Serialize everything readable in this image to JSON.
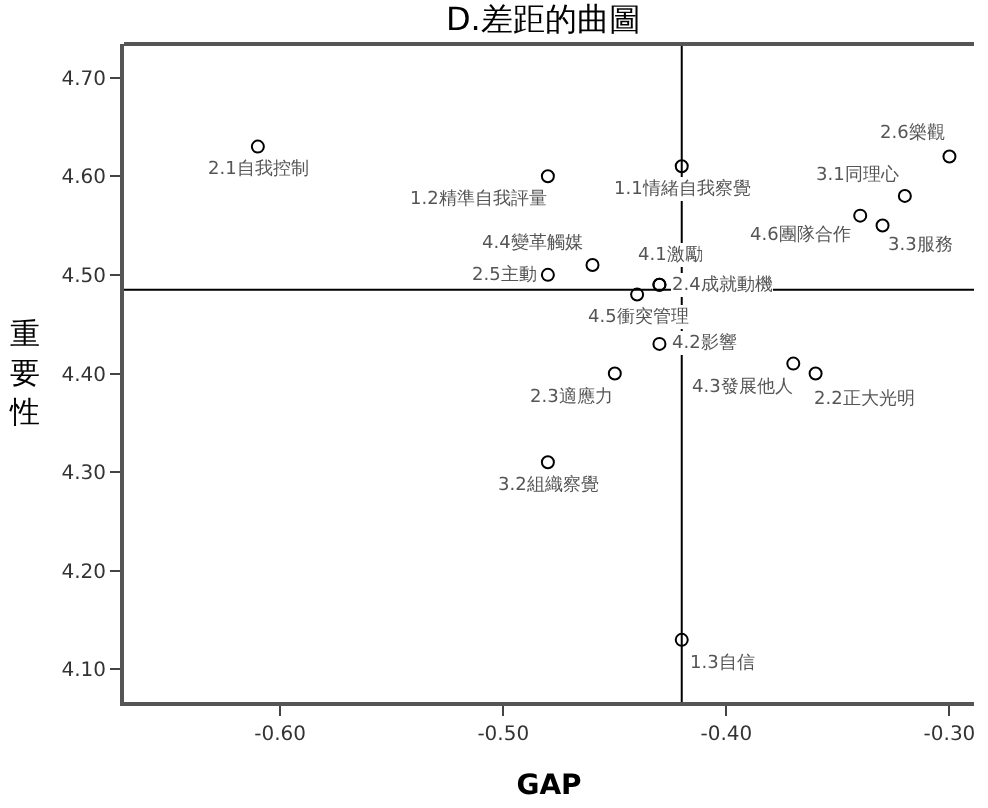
{
  "chart_data": {
    "type": "scatter",
    "title": "D.差距的曲圖",
    "xlabel": "GAP",
    "ylabel": "重要性",
    "x": [
      -0.61,
      -0.48,
      -0.42,
      -0.3,
      -0.32,
      -0.34,
      -0.33,
      -0.46,
      -0.48,
      -0.43,
      -0.43,
      -0.44,
      -0.43,
      -0.45,
      -0.37,
      -0.36,
      -0.48,
      -0.42
    ],
    "series": [
      {
        "color": "#000000",
        "values": [
          4.63,
          4.6,
          4.61,
          4.62,
          4.58,
          4.56,
          4.55,
          4.51,
          4.5,
          4.49,
          4.49,
          4.48,
          4.43,
          4.4,
          4.41,
          4.4,
          4.31,
          4.13
        ]
      }
    ],
    "annotations": [
      {
        "text": "2.1自我控制",
        "x": -0.61,
        "y": 4.63
      },
      {
        "text": "1.2精準自我評量",
        "x": -0.48,
        "y": 4.6
      },
      {
        "text": "1.1情緒自我察覺",
        "x": -0.42,
        "y": 4.61
      },
      {
        "text": "2.6樂觀",
        "x": -0.3,
        "y": 4.62
      },
      {
        "text": "3.1同理心",
        "x": -0.32,
        "y": 4.58
      },
      {
        "text": "4.6團隊合作",
        "x": -0.34,
        "y": 4.56
      },
      {
        "text": "3.3服務",
        "x": -0.33,
        "y": 4.55
      },
      {
        "text": "4.4變革觸媒",
        "x": -0.46,
        "y": 4.51
      },
      {
        "text": "2.5主動",
        "x": -0.48,
        "y": 4.5
      },
      {
        "text": "4.1激勵",
        "x": -0.43,
        "y": 4.49
      },
      {
        "text": "2.4成就動機",
        "x": -0.43,
        "y": 4.49
      },
      {
        "text": "4.5衝突管理",
        "x": -0.44,
        "y": 4.48
      },
      {
        "text": "4.2影響",
        "x": -0.43,
        "y": 4.43
      },
      {
        "text": "2.3適應力",
        "x": -0.45,
        "y": 4.4
      },
      {
        "text": "4.3發展他人",
        "x": -0.37,
        "y": 4.41
      },
      {
        "text": "2.2正大光明",
        "x": -0.36,
        "y": 4.4
      },
      {
        "text": "3.2組織察覺",
        "x": -0.48,
        "y": 4.31
      },
      {
        "text": "1.3自信",
        "x": -0.42,
        "y": 4.13
      }
    ],
    "xlim": [
      -0.67,
      -0.289
    ],
    "xticks": [
      {
        "value": -0.6,
        "label": "-0.60"
      },
      {
        "value": -0.5,
        "label": "-0.50"
      },
      {
        "value": -0.4,
        "label": "-0.40"
      },
      {
        "value": -0.3,
        "label": "-0.30"
      }
    ],
    "ylim": [
      4.067,
      4.734
    ],
    "yticks": [
      {
        "value": 4.1,
        "label": "4.10"
      },
      {
        "value": 4.2,
        "label": "4.20"
      },
      {
        "value": 4.3,
        "label": "4.30"
      },
      {
        "value": 4.4,
        "label": "4.40"
      },
      {
        "value": 4.5,
        "label": "4.50"
      },
      {
        "value": 4.6,
        "label": "4.60"
      },
      {
        "value": 4.7,
        "label": "4.70"
      }
    ],
    "ref_lines": [
      {
        "axis": "x",
        "value": -0.42,
        "color": "#000000"
      },
      {
        "axis": "y",
        "value": 4.485,
        "color": "#000000"
      }
    ],
    "marker": "circle",
    "grid": false
  }
}
